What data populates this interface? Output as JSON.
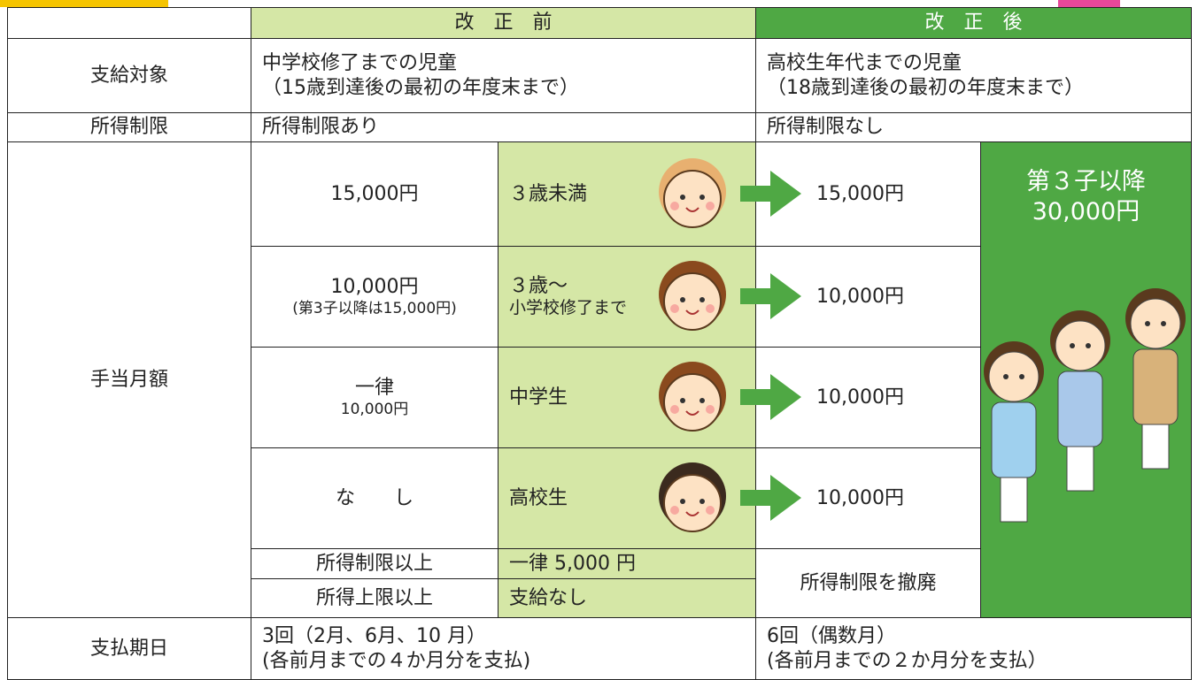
{
  "header": {
    "before": "改　正　前",
    "after": "改　正　後"
  },
  "rows": {
    "target": {
      "label": "支給対象",
      "before": [
        "中学校修了までの児童",
        "（15歳到達後の最初の年度末まで）"
      ],
      "after": [
        "高校生年代までの児童",
        "（18歳到達後の最初の年度末まで）"
      ]
    },
    "income_limit": {
      "label": "所得制限",
      "before": "所得制限あり",
      "after": "所得制限なし"
    },
    "monthly": {
      "label": "手当月額",
      "tiers": [
        {
          "before": [
            "15,000円"
          ],
          "age": [
            "３歳未満"
          ],
          "after": "15,000円"
        },
        {
          "before": [
            "10,000円",
            "(第3子以降は15,000円)"
          ],
          "age": [
            "３歳～",
            "小学校修了まで"
          ],
          "after": "10,000円"
        },
        {
          "before": [
            "一律",
            "10,000円"
          ],
          "age": [
            "中学生"
          ],
          "after": "10,000円"
        },
        {
          "before": [
            "な　　し"
          ],
          "age": [
            "高校生"
          ],
          "after": "10,000円"
        }
      ],
      "third_child": [
        "第３子以降",
        "30,000円"
      ],
      "income_rows": [
        {
          "label": "所得制限以上",
          "before": "一律 5,000 円"
        },
        {
          "label": "所得上限以上",
          "before": "支給なし"
        }
      ],
      "after_income": "所得制限を撤廃"
    },
    "payment": {
      "label": "支払期日",
      "before": [
        "3回（2月、6月、10 月）",
        "(各前月までの４か月分を支払)"
      ],
      "after": [
        "6回（偶数月）",
        "(各前月までの２か月分を支払）"
      ]
    }
  }
}
